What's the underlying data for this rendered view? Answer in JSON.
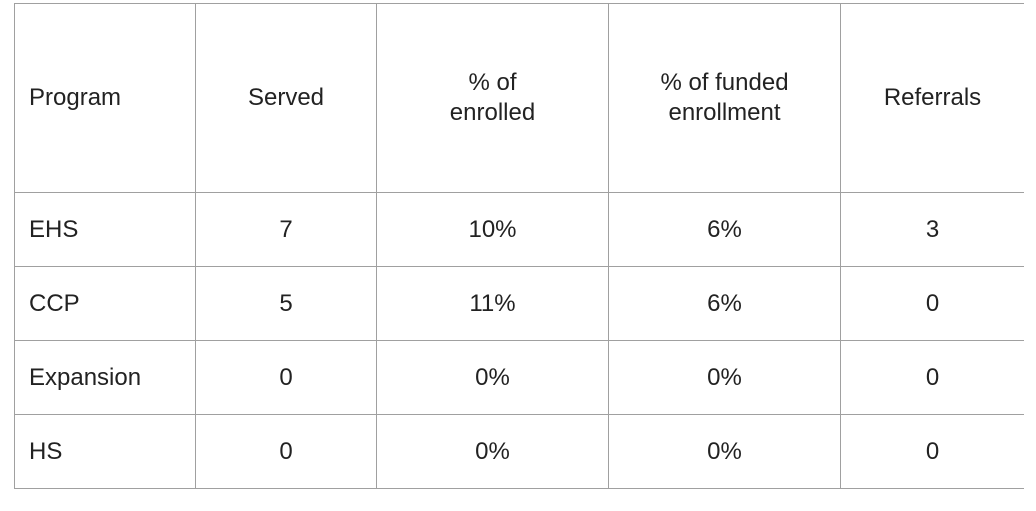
{
  "table": {
    "header": [
      "Program",
      "Served",
      "% of\nenrolled",
      "% of funded\nenrollment",
      "Referrals"
    ],
    "rows": [
      [
        "EHS",
        "7",
        "10%",
        "6%",
        "3"
      ],
      [
        "CCP",
        "5",
        "11%",
        "6%",
        "0"
      ],
      [
        "Expansion",
        "0",
        "0%",
        "0%",
        "0"
      ],
      [
        "HS",
        "0",
        "0%",
        "0%",
        "0"
      ]
    ]
  }
}
